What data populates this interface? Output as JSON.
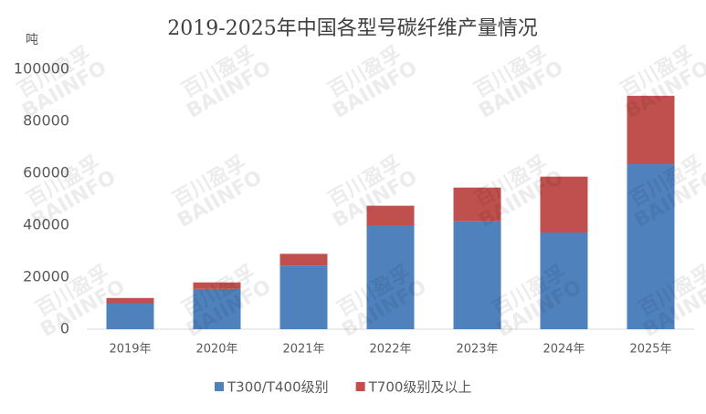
{
  "chart_data": {
    "type": "stacked_bar",
    "title": "2019-2025年中国各型号碳纤维产量情况",
    "y_label": "吨",
    "watermark": [
      "百川盈孚",
      "BAIINFO"
    ],
    "categories": [
      "2019年",
      "2020年",
      "2021年",
      "2022年",
      "2023年",
      "2024年",
      "2025年"
    ],
    "series": [
      {
        "name": "T300/T400级别",
        "color": "#4f81bd",
        "values": [
          10000,
          15500,
          24500,
          40000,
          41500,
          37200,
          63500
        ]
      },
      {
        "name": "T700级别及以上",
        "color": "#c0504d",
        "values": [
          2000,
          2500,
          4500,
          7500,
          13000,
          21500,
          26300
        ]
      }
    ],
    "ylim": [
      0,
      100000
    ],
    "yticks": [
      0,
      20000,
      40000,
      60000,
      80000,
      100000
    ],
    "grid": false,
    "legend": "bottom"
  }
}
